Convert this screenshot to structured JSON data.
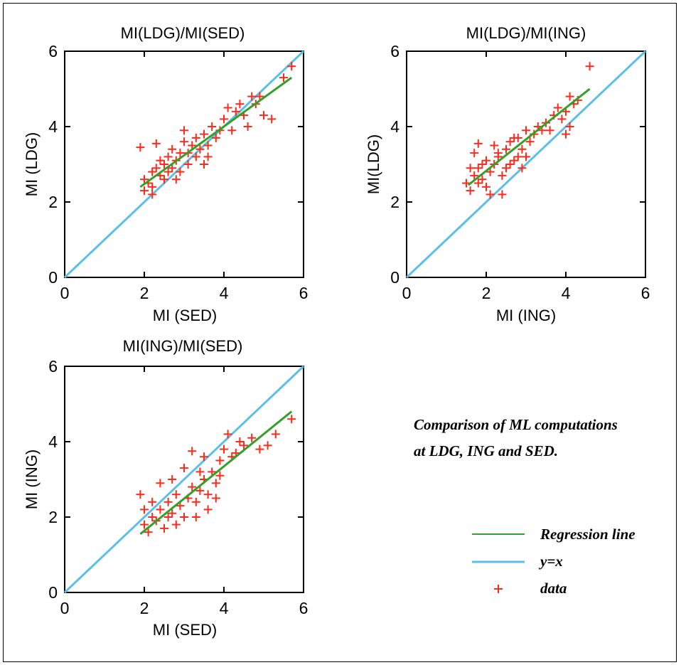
{
  "caption": [
    "Comparison of ML computations",
    "at LDG, ING and SED."
  ],
  "legend": {
    "regression": "Regression line",
    "identity": "y=x",
    "data": "data"
  },
  "colors": {
    "regression": "#33a02c",
    "identity": "#5bc0e8",
    "data": "#ff2a1a"
  },
  "chart_data": [
    {
      "type": "scatter",
      "title": "MI(LDG)/MI(SED)",
      "xlabel": "MI (SED)",
      "ylabel": "MI (LDG)",
      "xlim": [
        0,
        6
      ],
      "ylim": [
        0,
        6
      ],
      "xticks": [
        "0",
        "2",
        "4",
        "6"
      ],
      "yticks": [
        "0",
        "2",
        "4",
        "6"
      ],
      "regression": [
        [
          1.9,
          2.4
        ],
        [
          5.7,
          5.3
        ]
      ],
      "identity": [
        [
          0,
          0
        ],
        [
          6,
          6
        ]
      ],
      "points": [
        [
          1.9,
          3.45
        ],
        [
          2.3,
          3.55
        ],
        [
          2.0,
          2.6
        ],
        [
          2.1,
          2.5
        ],
        [
          2.2,
          2.8
        ],
        [
          2.3,
          2.9
        ],
        [
          2.4,
          2.7
        ],
        [
          2.2,
          2.4
        ],
        [
          2.5,
          3.0
        ],
        [
          2.6,
          3.2
        ],
        [
          2.7,
          2.9
        ],
        [
          2.8,
          3.1
        ],
        [
          2.9,
          3.3
        ],
        [
          2.5,
          2.6
        ],
        [
          2.6,
          2.8
        ],
        [
          2.7,
          3.4
        ],
        [
          3.0,
          3.6
        ],
        [
          3.1,
          3.3
        ],
        [
          3.2,
          3.5
        ],
        [
          3.3,
          3.7
        ],
        [
          3.1,
          3.0
        ],
        [
          3.4,
          3.4
        ],
        [
          3.5,
          3.8
        ],
        [
          3.6,
          3.5
        ],
        [
          3.7,
          4.0
        ],
        [
          3.8,
          3.7
        ],
        [
          3.6,
          3.2
        ],
        [
          3.9,
          3.9
        ],
        [
          4.0,
          4.2
        ],
        [
          4.1,
          4.5
        ],
        [
          4.2,
          3.9
        ],
        [
          4.3,
          4.4
        ],
        [
          4.5,
          4.3
        ],
        [
          4.7,
          4.8
        ],
        [
          4.8,
          4.6
        ],
        [
          4.9,
          4.8
        ],
        [
          5.0,
          4.3
        ],
        [
          5.2,
          4.2
        ],
        [
          5.5,
          5.3
        ],
        [
          5.7,
          5.6
        ],
        [
          3.0,
          3.9
        ],
        [
          2.8,
          2.6
        ],
        [
          2.4,
          3.1
        ],
        [
          3.3,
          3.2
        ],
        [
          3.5,
          3.0
        ],
        [
          2.2,
          2.2
        ],
        [
          2.0,
          2.3
        ],
        [
          2.9,
          2.8
        ],
        [
          4.6,
          4.0
        ],
        [
          4.4,
          4.6
        ]
      ]
    },
    {
      "type": "scatter",
      "title": "MI(LDG)/MI(ING)",
      "xlabel": "MI (ING)",
      "ylabel": "MI(LDG)",
      "xlim": [
        0,
        6
      ],
      "ylim": [
        0,
        6
      ],
      "xticks": [
        "0",
        "2",
        "4",
        "6"
      ],
      "yticks": [
        "0",
        "2",
        "4",
        "6"
      ],
      "regression": [
        [
          1.55,
          2.45
        ],
        [
          4.6,
          5.0
        ]
      ],
      "identity": [
        [
          0,
          0
        ],
        [
          6,
          6
        ]
      ],
      "points": [
        [
          1.5,
          2.5
        ],
        [
          1.6,
          2.3
        ],
        [
          1.7,
          2.7
        ],
        [
          1.8,
          2.9
        ],
        [
          1.9,
          2.6
        ],
        [
          2.0,
          3.1
        ],
        [
          1.7,
          3.3
        ],
        [
          1.8,
          3.55
        ],
        [
          2.1,
          2.8
        ],
        [
          2.2,
          3.0
        ],
        [
          2.3,
          3.2
        ],
        [
          2.4,
          2.7
        ],
        [
          2.5,
          3.4
        ],
        [
          2.6,
          3.6
        ],
        [
          2.7,
          3.1
        ],
        [
          2.8,
          3.7
        ],
        [
          2.9,
          3.4
        ],
        [
          3.0,
          3.9
        ],
        [
          3.1,
          3.6
        ],
        [
          3.2,
          3.8
        ],
        [
          2.4,
          2.2
        ],
        [
          2.0,
          2.4
        ],
        [
          1.9,
          3.0
        ],
        [
          2.2,
          3.5
        ],
        [
          2.6,
          3.0
        ],
        [
          2.8,
          3.2
        ],
        [
          3.3,
          4.0
        ],
        [
          3.5,
          4.1
        ],
        [
          3.7,
          4.3
        ],
        [
          3.8,
          4.5
        ],
        [
          3.9,
          4.2
        ],
        [
          4.0,
          4.4
        ],
        [
          4.1,
          4.8
        ],
        [
          4.2,
          4.6
        ],
        [
          4.3,
          4.7
        ],
        [
          4.0,
          3.8
        ],
        [
          4.6,
          5.6
        ],
        [
          2.3,
          3.3
        ],
        [
          1.6,
          2.9
        ],
        [
          3.0,
          3.2
        ],
        [
          2.9,
          2.9
        ],
        [
          2.1,
          2.2
        ],
        [
          3.4,
          3.9
        ],
        [
          1.8,
          2.5
        ],
        [
          2.7,
          3.7
        ],
        [
          3.6,
          3.9
        ],
        [
          4.1,
          4.0
        ],
        [
          2.5,
          2.9
        ]
      ]
    },
    {
      "type": "scatter",
      "title": "MI(ING)/MI(SED)",
      "xlabel": "MI (SED)",
      "ylabel": "MI (ING)",
      "xlim": [
        0,
        6
      ],
      "ylim": [
        0,
        6
      ],
      "xticks": [
        "0",
        "2",
        "4",
        "6"
      ],
      "yticks": [
        "0",
        "2",
        "4",
        "6"
      ],
      "regression": [
        [
          1.9,
          1.55
        ],
        [
          5.7,
          4.8
        ]
      ],
      "identity": [
        [
          0,
          0
        ],
        [
          6,
          6
        ]
      ],
      "points": [
        [
          1.9,
          2.6
        ],
        [
          2.0,
          1.8
        ],
        [
          2.1,
          1.6
        ],
        [
          2.2,
          2.0
        ],
        [
          2.3,
          1.9
        ],
        [
          2.4,
          2.2
        ],
        [
          2.5,
          1.7
        ],
        [
          2.6,
          2.4
        ],
        [
          2.7,
          2.1
        ],
        [
          2.8,
          2.6
        ],
        [
          2.9,
          2.3
        ],
        [
          3.0,
          2.0
        ],
        [
          3.1,
          2.5
        ],
        [
          3.2,
          2.8
        ],
        [
          3.3,
          2.4
        ],
        [
          3.4,
          2.7
        ],
        [
          3.5,
          3.0
        ],
        [
          3.6,
          2.6
        ],
        [
          3.7,
          3.2
        ],
        [
          3.8,
          2.9
        ],
        [
          3.9,
          3.5
        ],
        [
          4.0,
          3.8
        ],
        [
          4.1,
          4.2
        ],
        [
          4.2,
          3.6
        ],
        [
          4.4,
          4.0
        ],
        [
          4.5,
          3.9
        ],
        [
          4.7,
          4.1
        ],
        [
          4.9,
          3.8
        ],
        [
          5.1,
          3.9
        ],
        [
          5.3,
          4.2
        ],
        [
          5.7,
          4.6
        ],
        [
          3.2,
          3.75
        ],
        [
          2.4,
          2.9
        ],
        [
          2.7,
          3.0
        ],
        [
          3.0,
          3.3
        ],
        [
          3.5,
          3.6
        ],
        [
          3.8,
          2.5
        ],
        [
          3.6,
          2.2
        ],
        [
          2.8,
          1.8
        ],
        [
          2.2,
          2.4
        ],
        [
          3.3,
          2.0
        ],
        [
          3.9,
          3.1
        ],
        [
          2.6,
          2.0
        ],
        [
          3.4,
          3.2
        ],
        [
          4.3,
          3.7
        ],
        [
          2.0,
          2.2
        ]
      ]
    }
  ]
}
